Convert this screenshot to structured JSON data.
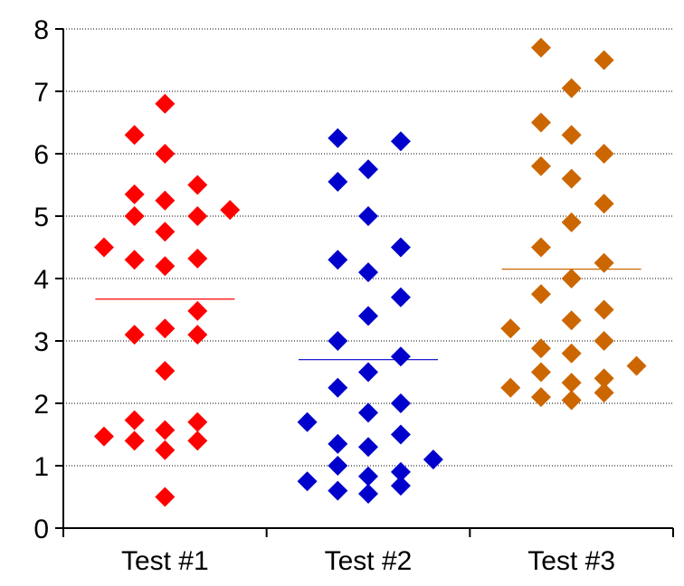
{
  "chart_data": {
    "type": "scatter",
    "title": "",
    "xlabel": "",
    "ylabel": "",
    "categories": [
      "Test #1",
      "Test #2",
      "Test #3"
    ],
    "ylim": [
      0,
      8
    ],
    "yticks": [
      "0",
      "1",
      "2",
      "3",
      "4",
      "5",
      "6",
      "7",
      "8"
    ],
    "grid": "horizontal",
    "marker": "diamond",
    "series": [
      {
        "color": "#ff0000",
        "mean": 3.67,
        "points": [
          {
            "x": 1.0,
            "y": 6.8
          },
          {
            "x": 0.85,
            "y": 6.3
          },
          {
            "x": 1.0,
            "y": 6.0
          },
          {
            "x": 0.85,
            "y": 5.35
          },
          {
            "x": 1.0,
            "y": 5.25
          },
          {
            "x": 1.16,
            "y": 5.5
          },
          {
            "x": 1.32,
            "y": 5.1
          },
          {
            "x": 0.85,
            "y": 5.0
          },
          {
            "x": 1.16,
            "y": 5.0
          },
          {
            "x": 1.0,
            "y": 4.75
          },
          {
            "x": 0.7,
            "y": 4.5
          },
          {
            "x": 0.85,
            "y": 4.3
          },
          {
            "x": 1.0,
            "y": 4.2
          },
          {
            "x": 1.16,
            "y": 4.32
          },
          {
            "x": 1.16,
            "y": 3.48
          },
          {
            "x": 0.85,
            "y": 3.1
          },
          {
            "x": 1.0,
            "y": 3.2
          },
          {
            "x": 1.16,
            "y": 3.1
          },
          {
            "x": 1.0,
            "y": 2.52
          },
          {
            "x": 0.85,
            "y": 1.73
          },
          {
            "x": 1.0,
            "y": 1.57
          },
          {
            "x": 1.16,
            "y": 1.7
          },
          {
            "x": 0.7,
            "y": 1.47
          },
          {
            "x": 0.85,
            "y": 1.4
          },
          {
            "x": 1.0,
            "y": 1.25
          },
          {
            "x": 1.16,
            "y": 1.4
          },
          {
            "x": 1.0,
            "y": 0.5
          }
        ]
      },
      {
        "color": "#0000cc",
        "mean": 2.7,
        "points": [
          {
            "x": 1.85,
            "y": 6.25
          },
          {
            "x": 2.16,
            "y": 6.2
          },
          {
            "x": 1.85,
            "y": 5.55
          },
          {
            "x": 2.0,
            "y": 5.75
          },
          {
            "x": 2.0,
            "y": 5.0
          },
          {
            "x": 1.85,
            "y": 4.3
          },
          {
            "x": 2.0,
            "y": 4.1
          },
          {
            "x": 2.16,
            "y": 4.5
          },
          {
            "x": 2.16,
            "y": 3.7
          },
          {
            "x": 2.0,
            "y": 3.4
          },
          {
            "x": 1.85,
            "y": 3.0
          },
          {
            "x": 2.16,
            "y": 2.75
          },
          {
            "x": 2.0,
            "y": 2.5
          },
          {
            "x": 1.85,
            "y": 2.25
          },
          {
            "x": 2.16,
            "y": 2.0
          },
          {
            "x": 2.0,
            "y": 1.85
          },
          {
            "x": 1.7,
            "y": 1.7
          },
          {
            "x": 1.85,
            "y": 1.35
          },
          {
            "x": 2.0,
            "y": 1.3
          },
          {
            "x": 2.16,
            "y": 1.5
          },
          {
            "x": 2.32,
            "y": 1.1
          },
          {
            "x": 1.85,
            "y": 1.0
          },
          {
            "x": 2.0,
            "y": 0.83
          },
          {
            "x": 2.16,
            "y": 0.9
          },
          {
            "x": 1.7,
            "y": 0.75
          },
          {
            "x": 1.85,
            "y": 0.6
          },
          {
            "x": 2.0,
            "y": 0.55
          },
          {
            "x": 2.16,
            "y": 0.68
          }
        ]
      },
      {
        "color": "#cc6600",
        "mean": 4.15,
        "points": [
          {
            "x": 2.85,
            "y": 7.7
          },
          {
            "x": 3.16,
            "y": 7.5
          },
          {
            "x": 3.0,
            "y": 7.05
          },
          {
            "x": 2.85,
            "y": 6.5
          },
          {
            "x": 3.0,
            "y": 6.3
          },
          {
            "x": 3.16,
            "y": 6.0
          },
          {
            "x": 2.85,
            "y": 5.8
          },
          {
            "x": 3.0,
            "y": 5.6
          },
          {
            "x": 3.16,
            "y": 5.2
          },
          {
            "x": 3.0,
            "y": 4.9
          },
          {
            "x": 2.85,
            "y": 4.5
          },
          {
            "x": 3.16,
            "y": 4.25
          },
          {
            "x": 3.0,
            "y": 4.0
          },
          {
            "x": 2.85,
            "y": 3.75
          },
          {
            "x": 3.16,
            "y": 3.5
          },
          {
            "x": 3.0,
            "y": 3.33
          },
          {
            "x": 2.7,
            "y": 3.2
          },
          {
            "x": 3.16,
            "y": 3.0
          },
          {
            "x": 2.85,
            "y": 2.88
          },
          {
            "x": 3.0,
            "y": 2.8
          },
          {
            "x": 3.32,
            "y": 2.6
          },
          {
            "x": 2.85,
            "y": 2.5
          },
          {
            "x": 3.16,
            "y": 2.4
          },
          {
            "x": 3.0,
            "y": 2.33
          },
          {
            "x": 2.7,
            "y": 2.25
          },
          {
            "x": 2.85,
            "y": 2.1
          },
          {
            "x": 3.0,
            "y": 2.05
          },
          {
            "x": 3.16,
            "y": 2.17
          }
        ]
      }
    ]
  }
}
